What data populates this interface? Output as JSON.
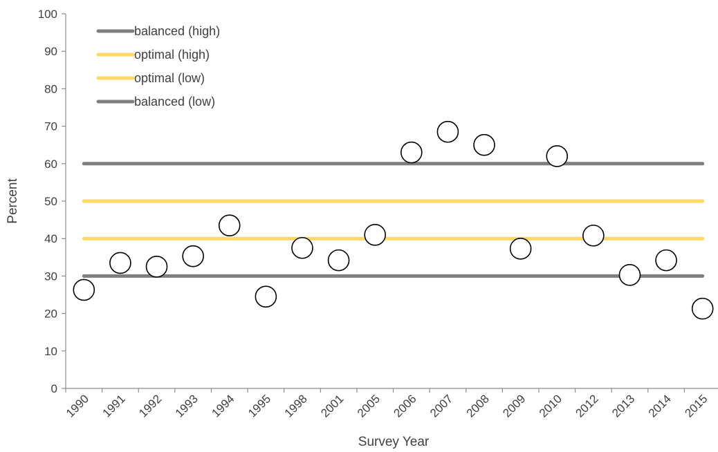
{
  "chart_data": {
    "type": "scatter",
    "xlabel": "Survey Year",
    "ylabel": "Percent",
    "ylim": [
      0,
      100
    ],
    "yticks": [
      0,
      10,
      20,
      30,
      40,
      50,
      60,
      70,
      80,
      90,
      100
    ],
    "categories": [
      "1990",
      "1991",
      "1992",
      "1993",
      "1994",
      "1995",
      "1998",
      "2001",
      "2005",
      "2006",
      "2007",
      "2008",
      "2009",
      "2010",
      "2012",
      "2013",
      "2014",
      "2015"
    ],
    "values": [
      26.3,
      33.5,
      32.5,
      35.3,
      43.5,
      24.5,
      37.5,
      34.2,
      41.0,
      63.0,
      68.5,
      65.0,
      37.3,
      62.0,
      40.8,
      30.3,
      34.2,
      21.3
    ],
    "reference_lines": [
      {
        "name": "balanced (high)",
        "value": 60,
        "color": "#7f7f7f"
      },
      {
        "name": "optimal (high)",
        "value": 50,
        "color": "#ffd966"
      },
      {
        "name": "optimal (low)",
        "value": 40,
        "color": "#ffd966"
      },
      {
        "name": "balanced (low)",
        "value": 30,
        "color": "#7f7f7f"
      }
    ],
    "marker": {
      "fill": "#ffffff",
      "stroke": "#000000"
    },
    "legend_position": "top-left",
    "grid": false
  }
}
